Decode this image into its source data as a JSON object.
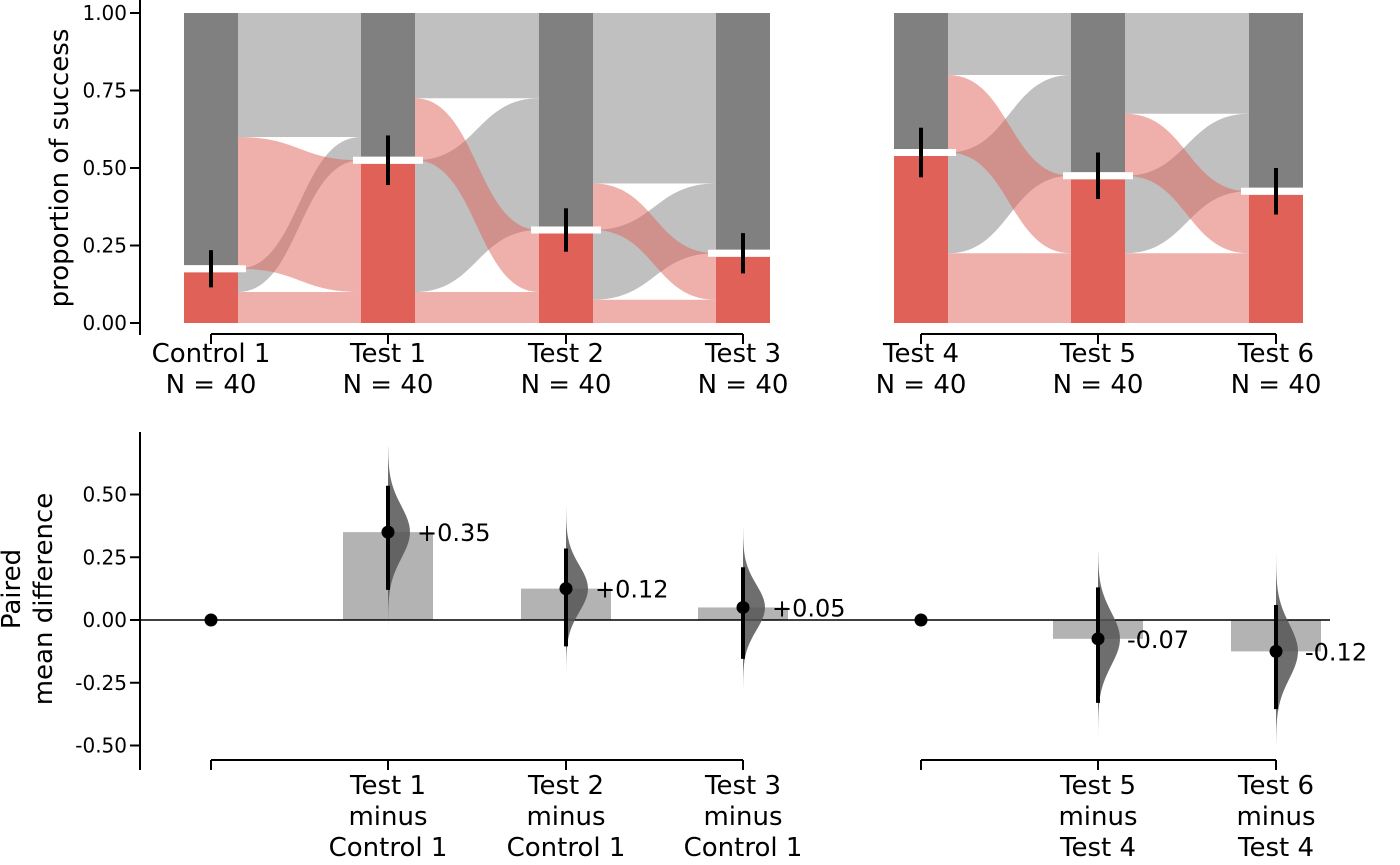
{
  "colors": {
    "success": "#e06158",
    "success_light": "#efafab",
    "fail": "#808080",
    "fail_light": "#c0c0c0",
    "delta_bar": "#b3b3b3",
    "halfviolin": "#555555",
    "axis": "#000000"
  },
  "chart_data": [
    {
      "type": "bar",
      "subtype": "paired proportion plot (sankey)",
      "ylabel": "proportion of success",
      "ylim": [
        0,
        1
      ],
      "yticks": [
        "0.00",
        "0.25",
        "0.50",
        "0.75",
        "1.00"
      ],
      "groups": [
        {
          "id": "g1",
          "categories": [
            "Control 1",
            "Test 1",
            "Test 2",
            "Test 3"
          ],
          "n_labels": [
            "N = 40",
            "N = 40",
            "N = 40",
            "N = 40"
          ],
          "success": [
            0.175,
            0.525,
            0.3,
            0.225
          ],
          "ci": [
            [
              0.115,
              0.235
            ],
            [
              0.445,
              0.605
            ],
            [
              0.23,
              0.37
            ],
            [
              0.16,
              0.29
            ]
          ],
          "flows": [
            {
              "stay_success": 0.1,
              "success_to_fail": 0.075,
              "fail_to_success": 0.425
            },
            {
              "stay_success": 0.1,
              "success_to_fail": 0.425,
              "fail_to_success": 0.2
            },
            {
              "stay_success": 0.075,
              "success_to_fail": 0.225,
              "fail_to_success": 0.15
            }
          ]
        },
        {
          "id": "g2",
          "categories": [
            "Test 4",
            "Test 5",
            "Test 6"
          ],
          "n_labels": [
            "N = 40",
            "N = 40",
            "N = 40"
          ],
          "success": [
            0.55,
            0.475,
            0.425
          ],
          "ci": [
            [
              0.47,
              0.63
            ],
            [
              0.4,
              0.55
            ],
            [
              0.35,
              0.5
            ]
          ],
          "flows": [
            {
              "stay_success": 0.225,
              "success_to_fail": 0.325,
              "fail_to_success": 0.25
            },
            {
              "stay_success": 0.225,
              "success_to_fail": 0.25,
              "fail_to_success": 0.2
            }
          ]
        }
      ]
    },
    {
      "type": "bar",
      "subtype": "paired mean difference estimation plot",
      "ylabel": "Paired mean difference",
      "ylabel_lines": [
        "Paired",
        "mean difference"
      ],
      "ylim": [
        -0.5,
        0.75
      ],
      "yticks": [
        "-0.50",
        "-0.25",
        "0.00",
        "0.25",
        "0.50"
      ],
      "groups": [
        {
          "reference": "",
          "comparisons": [
            {
              "lines": [
                "Test 1",
                "minus",
                "Control 1"
              ],
              "value": 0.35,
              "label": "+0.35",
              "ci": [
                0.12,
                0.535
              ],
              "dist": [
                -0.04,
                0.69
              ]
            },
            {
              "lines": [
                "Test 2",
                "minus",
                "Control 1"
              ],
              "value": 0.125,
              "label": "+0.12",
              "ci": [
                -0.105,
                0.285
              ],
              "dist": [
                -0.2,
                0.45
              ]
            },
            {
              "lines": [
                "Test 3",
                "minus",
                "Control 1"
              ],
              "value": 0.05,
              "label": "+0.05",
              "ci": [
                -0.155,
                0.21
              ],
              "dist": [
                -0.27,
                0.37
              ]
            }
          ]
        },
        {
          "reference": "",
          "comparisons": [
            {
              "lines": [
                "Test 5",
                "minus",
                "Test 4"
              ],
              "value": -0.075,
              "label": "-0.07",
              "ci": [
                -0.33,
                0.13
              ],
              "dist": [
                -0.47,
                0.27
              ]
            },
            {
              "lines": [
                "Test 6",
                "minus",
                "Test 4"
              ],
              "value": -0.125,
              "label": "-0.12",
              "ci": [
                -0.355,
                0.06
              ],
              "dist": [
                -0.49,
                0.27
              ]
            }
          ]
        }
      ]
    }
  ]
}
